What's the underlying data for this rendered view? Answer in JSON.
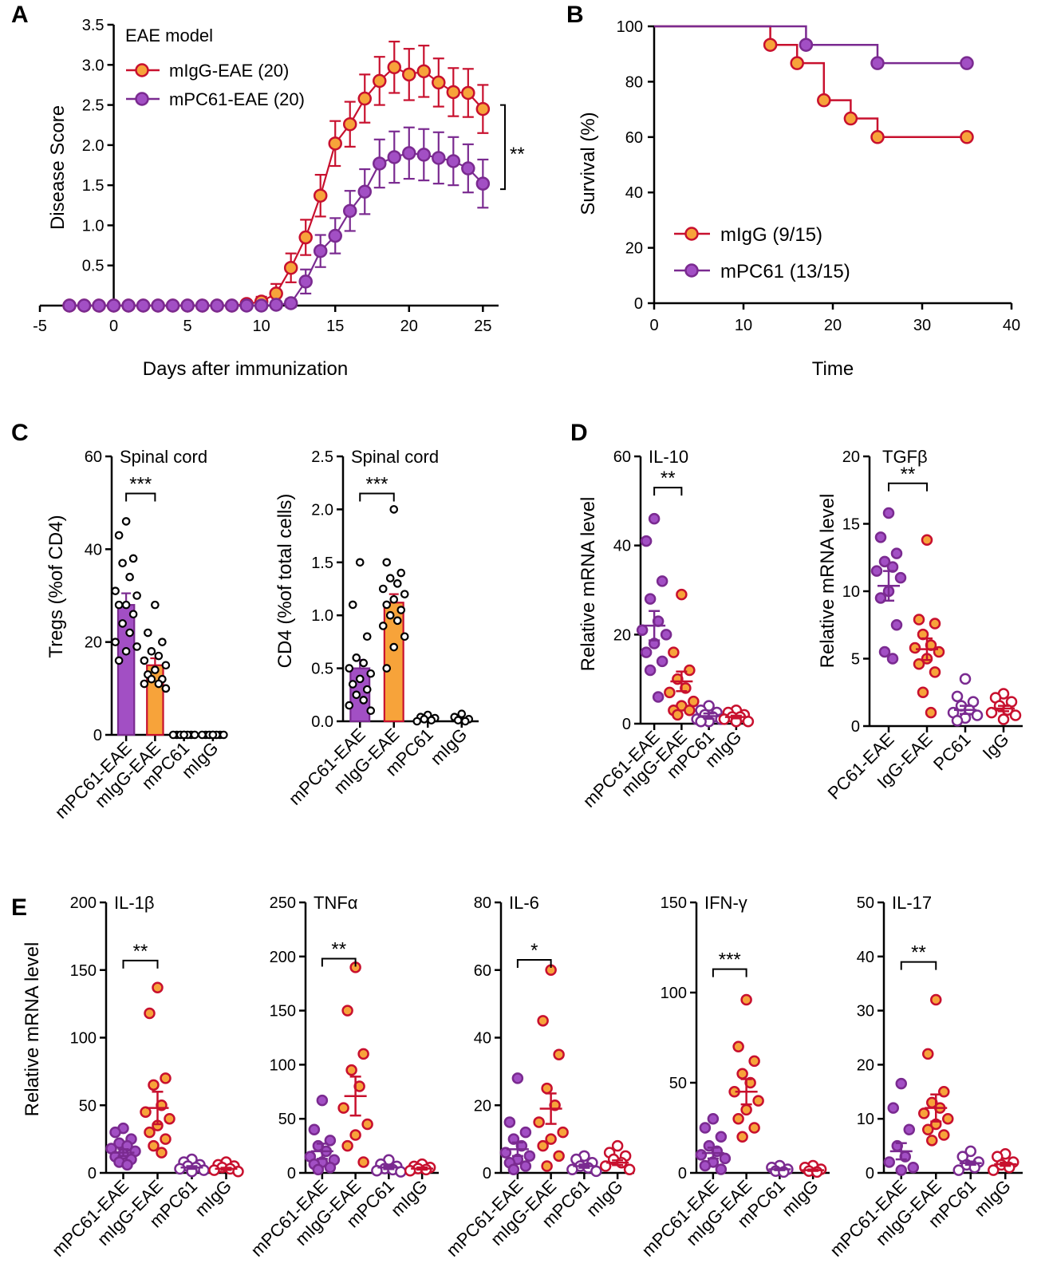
{
  "colors": {
    "red": "#c8102e",
    "orange": "#f7a33a",
    "purple": "#7a2a90",
    "purple_fill": "#a24fc4",
    "white": "#ffffff",
    "black": "#000000"
  },
  "chart_data": [
    {
      "id": "A",
      "type": "line",
      "panel_letter": "A",
      "xlabel": "Days after immunization",
      "ylabel": "Disease Score",
      "xlim": [
        -5,
        26
      ],
      "ylim": [
        0,
        3.5
      ],
      "xticks": [
        -5,
        0,
        5,
        10,
        15,
        20,
        25
      ],
      "yticks": [
        0.5,
        1.0,
        1.5,
        2.0,
        2.5,
        3.0,
        3.5
      ],
      "legend_title": "EAE model",
      "annotation": "**",
      "series": [
        {
          "name": "mIgG-EAE (20)",
          "line_color": "red",
          "marker_fill": "orange",
          "x": [
            -3,
            -2,
            -1,
            0,
            1,
            2,
            3,
            4,
            5,
            6,
            7,
            8,
            9,
            10,
            11,
            12,
            13,
            14,
            15,
            16,
            17,
            18,
            19,
            20,
            21,
            22,
            23,
            24,
            25
          ],
          "y": [
            0,
            0,
            0,
            0,
            0,
            0,
            0,
            0,
            0,
            0,
            0,
            0,
            0.02,
            0.05,
            0.15,
            0.47,
            0.85,
            1.37,
            2.02,
            2.26,
            2.58,
            2.8,
            2.97,
            2.88,
            2.92,
            2.78,
            2.66,
            2.65,
            2.45
          ],
          "err": [
            0,
            0,
            0,
            0,
            0,
            0,
            0,
            0,
            0,
            0,
            0,
            0,
            0.03,
            0.06,
            0.12,
            0.18,
            0.22,
            0.26,
            0.28,
            0.28,
            0.3,
            0.3,
            0.32,
            0.32,
            0.32,
            0.3,
            0.3,
            0.3,
            0.3
          ]
        },
        {
          "name": "mPC61-EAE (20)",
          "line_color": "purple",
          "marker_fill": "purple_fill",
          "x": [
            -3,
            -2,
            -1,
            0,
            1,
            2,
            3,
            4,
            5,
            6,
            7,
            8,
            9,
            10,
            11,
            12,
            13,
            14,
            15,
            16,
            17,
            18,
            19,
            20,
            21,
            22,
            23,
            24,
            25
          ],
          "y": [
            0,
            0,
            0,
            0,
            0,
            0,
            0,
            0,
            0,
            0,
            0,
            0,
            0,
            0,
            0.01,
            0.03,
            0.3,
            0.68,
            0.87,
            1.18,
            1.42,
            1.77,
            1.85,
            1.9,
            1.88,
            1.84,
            1.8,
            1.71,
            1.52
          ],
          "err": [
            0,
            0,
            0,
            0,
            0,
            0,
            0,
            0,
            0,
            0,
            0,
            0,
            0,
            0,
            0.02,
            0.05,
            0.15,
            0.2,
            0.22,
            0.25,
            0.28,
            0.3,
            0.32,
            0.32,
            0.32,
            0.32,
            0.3,
            0.3,
            0.3
          ]
        }
      ]
    },
    {
      "id": "B",
      "type": "line",
      "panel_letter": "B",
      "xlabel": "Time",
      "ylabel": "Survival (%)",
      "xlim": [
        0,
        40
      ],
      "ylim": [
        0,
        100
      ],
      "xticks": [
        0,
        10,
        20,
        30,
        40
      ],
      "yticks": [
        0,
        20,
        40,
        60,
        80,
        100
      ],
      "series": [
        {
          "name": "mIgG (9/15)",
          "line_color": "red",
          "marker_fill": "orange",
          "x": [
            0,
            13,
            16,
            19,
            22,
            25,
            35
          ],
          "y": [
            100,
            93.3,
            86.7,
            73.3,
            66.7,
            60,
            60
          ],
          "markers": [
            [
              13,
              93.3
            ],
            [
              16,
              86.7
            ],
            [
              19,
              73.3
            ],
            [
              22,
              66.7
            ],
            [
              25,
              60
            ],
            [
              35,
              60
            ]
          ]
        },
        {
          "name": "mPC61 (13/15)",
          "line_color": "purple",
          "marker_fill": "purple_fill",
          "x": [
            0,
            17,
            25,
            35
          ],
          "y": [
            100,
            93.3,
            86.7,
            86.7
          ],
          "markers": [
            [
              17,
              93.3
            ],
            [
              25,
              86.7
            ],
            [
              35,
              86.7
            ]
          ]
        }
      ]
    },
    {
      "id": "C1",
      "type": "bar",
      "panel_letter": "C",
      "title": "Spinal cord",
      "ylabel": "Tregs (%of CD4)",
      "ylim": [
        0,
        60
      ],
      "yticks": [
        0,
        20,
        40,
        60
      ],
      "categories": [
        "mPC61-EAE",
        "mIgG-EAE",
        "mPC61",
        "mIgG"
      ],
      "values": [
        28,
        15,
        0,
        0
      ],
      "err": [
        2.5,
        1.5,
        0.2,
        0.2
      ],
      "bar_fill": [
        "purple_fill",
        "orange",
        "white",
        "white"
      ],
      "bar_stroke": [
        "purple",
        "red",
        "black",
        "black"
      ],
      "points": [
        [
          46,
          43,
          38,
          37,
          34,
          31,
          30,
          28,
          28,
          26,
          24,
          22,
          20,
          19,
          18,
          16
        ],
        [
          28,
          22,
          20,
          18,
          17,
          16,
          15,
          14,
          13,
          12,
          12,
          11,
          11,
          10
        ],
        [
          0,
          0,
          0,
          0,
          0,
          0,
          0,
          0
        ],
        [
          0,
          0,
          0,
          0,
          0,
          0,
          0,
          0
        ]
      ],
      "point_fill": "white",
      "point_stroke": "black",
      "significance": {
        "from": 0,
        "to": 1,
        "label": "***",
        "y": 52
      }
    },
    {
      "id": "C2",
      "type": "bar",
      "title": "Spinal cord",
      "ylabel": "CD4 (%of total cells)",
      "ylim": [
        0,
        2.5
      ],
      "yticks": [
        0.0,
        0.5,
        1.0,
        1.5,
        2.0,
        2.5
      ],
      "categories": [
        "mPC61-EAE",
        "mIgG-EAE",
        "mPC61",
        "mIgG"
      ],
      "values": [
        0.5,
        1.12,
        0.03,
        0.02
      ],
      "err": [
        0.08,
        0.08,
        0.01,
        0.01
      ],
      "bar_fill": [
        "purple_fill",
        "orange",
        "white",
        "white"
      ],
      "bar_stroke": [
        "purple",
        "red",
        "black",
        "black"
      ],
      "points": [
        [
          1.5,
          1.1,
          0.8,
          0.6,
          0.55,
          0.5,
          0.45,
          0.4,
          0.35,
          0.3,
          0.25,
          0.2,
          0.15,
          0.1
        ],
        [
          2.0,
          1.5,
          1.4,
          1.35,
          1.3,
          1.25,
          1.2,
          1.15,
          1.1,
          1.05,
          1.0,
          0.95,
          0.9,
          0.8,
          0.7,
          0.5
        ],
        [
          0.06,
          0.04,
          0.03,
          0.02,
          0.01,
          0.0
        ],
        [
          0.07,
          0.04,
          0.02,
          0.01,
          0.0
        ]
      ],
      "point_fill": "white",
      "point_stroke": "black",
      "significance": {
        "from": 0,
        "to": 1,
        "label": "***",
        "y": 2.15
      }
    },
    {
      "id": "D1",
      "type": "scatter",
      "panel_letter": "D",
      "title": "IL-10",
      "ylabel": "Relative mRNA level",
      "ylim": [
        0,
        60
      ],
      "yticks": [
        0,
        20,
        40,
        60
      ],
      "categories": [
        "mPC61-EAE",
        "mIgG-EAE",
        "mPC61",
        "mIgG"
      ],
      "means": [
        22,
        9.5,
        1.7,
        1.5
      ],
      "err": [
        3.3,
        2.2,
        0.6,
        0.3
      ],
      "points": [
        [
          46,
          41,
          32,
          28,
          23,
          21,
          20,
          18,
          16,
          14,
          12,
          6
        ],
        [
          29,
          16,
          12,
          10,
          8,
          7,
          5,
          4,
          3,
          3,
          2
        ],
        [
          4,
          3,
          2.5,
          2,
          1.5,
          1,
          1,
          0.5,
          0.5
        ],
        [
          3,
          2.5,
          2,
          1.5,
          1.5,
          1,
          0.5,
          0.5
        ]
      ],
      "point_fill": [
        "purple_fill",
        "orange",
        "white",
        "white"
      ],
      "point_stroke": [
        "purple",
        "red",
        "purple",
        "red"
      ],
      "significance": {
        "from": 0,
        "to": 1,
        "label": "**",
        "y": 53
      }
    },
    {
      "id": "D2",
      "type": "scatter",
      "title": "TGFβ",
      "ylabel": "Relative mRNA level",
      "ylim": [
        0,
        20
      ],
      "yticks": [
        0,
        5,
        10,
        15,
        20
      ],
      "categories": [
        "PC61-EAE",
        "IgG-EAE",
        "PC61",
        "IgG"
      ],
      "means": [
        10.4,
        5.7,
        1.2,
        1.3
      ],
      "err": [
        1.1,
        0.8,
        0.3,
        0.2
      ],
      "points": [
        [
          15.8,
          14,
          12.8,
          12.2,
          11.8,
          11.5,
          11,
          10,
          9.5,
          7.5,
          5.5,
          5.0
        ],
        [
          13.8,
          7.9,
          7.6,
          6.8,
          6.0,
          5.8,
          5.5,
          5.0,
          4.6,
          4.0,
          2.5,
          1.0
        ],
        [
          3.5,
          2.2,
          1.8,
          1.5,
          1.2,
          1.0,
          0.8,
          0.6,
          0.4
        ],
        [
          2.4,
          2.1,
          1.8,
          1.5,
          1.2,
          1.0,
          0.8,
          0.5
        ]
      ],
      "point_fill": [
        "purple_fill",
        "orange",
        "white",
        "white"
      ],
      "point_stroke": [
        "purple",
        "red",
        "purple",
        "red"
      ],
      "significance": {
        "from": 0,
        "to": 1,
        "label": "**",
        "y": 18
      }
    },
    {
      "id": "E1",
      "type": "scatter",
      "panel_letter": "E",
      "title": "IL-1β",
      "ylabel": "Relative mRNA level",
      "ylim": [
        0,
        200
      ],
      "yticks": [
        0,
        50,
        100,
        150,
        200
      ],
      "categories": [
        "mPC61-EAE",
        "mIgG-EAE",
        "mPC61",
        "mIgG"
      ],
      "means": [
        15,
        48,
        4,
        3
      ],
      "err": [
        2.5,
        12,
        1,
        0.8
      ],
      "points": [
        [
          33,
          30,
          25,
          22,
          20,
          18,
          16,
          14,
          12,
          10,
          8,
          6
        ],
        [
          137,
          118,
          70,
          65,
          50,
          45,
          40,
          35,
          30,
          25,
          20,
          15
        ],
        [
          10,
          8,
          6,
          5,
          4,
          3,
          2,
          1
        ],
        [
          8,
          6,
          5,
          4,
          3,
          2,
          1
        ]
      ],
      "point_fill": [
        "purple_fill",
        "orange",
        "white",
        "white"
      ],
      "point_stroke": [
        "purple",
        "red",
        "purple",
        "red"
      ],
      "significance": {
        "from": 0,
        "to": 1,
        "label": "**",
        "y": 157
      }
    },
    {
      "id": "E2",
      "type": "scatter",
      "title": "TNFα",
      "ylim": [
        0,
        250
      ],
      "yticks": [
        0,
        50,
        100,
        150,
        200,
        250
      ],
      "categories": [
        "mPC61-EAE",
        "mIgG-EAE",
        "mPC61",
        "mIgG"
      ],
      "means": [
        20,
        71,
        5,
        4
      ],
      "err": [
        7,
        18,
        1.5,
        1
      ],
      "points": [
        [
          67,
          40,
          30,
          25,
          20,
          15,
          12,
          10,
          8,
          5,
          3
        ],
        [
          190,
          150,
          110,
          95,
          80,
          60,
          45,
          35,
          25,
          10
        ],
        [
          12,
          8,
          6,
          4,
          3,
          2,
          1
        ],
        [
          8,
          6,
          5,
          4,
          3,
          2
        ]
      ],
      "point_fill": [
        "purple_fill",
        "orange",
        "white",
        "white"
      ],
      "point_stroke": [
        "purple",
        "red",
        "purple",
        "red"
      ],
      "significance": {
        "from": 0,
        "to": 1,
        "label": "**",
        "y": 198
      }
    },
    {
      "id": "E3",
      "type": "scatter",
      "title": "IL-6",
      "ylim": [
        0,
        80
      ],
      "yticks": [
        0,
        20,
        40,
        60,
        80
      ],
      "categories": [
        "mPC61-EAE",
        "mIgG-EAE",
        "mPC61",
        "mIgG"
      ],
      "means": [
        7,
        19,
        2,
        3
      ],
      "err": [
        2,
        4.5,
        0.5,
        0.7
      ],
      "points": [
        [
          28,
          15,
          12,
          10,
          8,
          6,
          5,
          4,
          3,
          2,
          1
        ],
        [
          60,
          45,
          35,
          25,
          20,
          15,
          12,
          10,
          8,
          5,
          2
        ],
        [
          5,
          4,
          3,
          2,
          1.5,
          1,
          0.5
        ],
        [
          8,
          6,
          5,
          4,
          3,
          2,
          1
        ]
      ],
      "point_fill": [
        "purple_fill",
        "orange",
        "white",
        "white"
      ],
      "point_stroke": [
        "purple",
        "red",
        "purple",
        "red"
      ],
      "significance": {
        "from": 0,
        "to": 1,
        "label": "*",
        "y": 63
      }
    },
    {
      "id": "E4",
      "type": "scatter",
      "title": "IFN-γ",
      "ylim": [
        0,
        150
      ],
      "yticks": [
        0,
        50,
        100,
        150
      ],
      "categories": [
        "mPC61-EAE",
        "mIgG-EAE",
        "mPC61",
        "mIgG"
      ],
      "means": [
        11,
        45,
        2,
        1.5
      ],
      "err": [
        3,
        7,
        0.5,
        0.4
      ],
      "points": [
        [
          30,
          25,
          20,
          15,
          12,
          10,
          8,
          6,
          4,
          2
        ],
        [
          96,
          70,
          62,
          55,
          50,
          45,
          40,
          35,
          30,
          25,
          20
        ],
        [
          4,
          3,
          2,
          1,
          0.5
        ],
        [
          4,
          3,
          2,
          1,
          0.5
        ]
      ],
      "point_fill": [
        "purple_fill",
        "orange",
        "white",
        "white"
      ],
      "point_stroke": [
        "purple",
        "red",
        "purple",
        "red"
      ],
      "significance": {
        "from": 0,
        "to": 1,
        "label": "***",
        "y": 113
      }
    },
    {
      "id": "E5",
      "type": "scatter",
      "title": "IL-17",
      "ylim": [
        0,
        50
      ],
      "yticks": [
        0,
        10,
        20,
        30,
        40,
        50
      ],
      "categories": [
        "mPC61-EAE",
        "mIgG-EAE",
        "mPC61",
        "mIgG"
      ],
      "means": [
        4,
        12,
        1.8,
        1.6
      ],
      "err": [
        1.5,
        2.5,
        0.3,
        0.3
      ],
      "points": [
        [
          16.5,
          12,
          8,
          5,
          3,
          2,
          1,
          0.5
        ],
        [
          32,
          22,
          15,
          13,
          12,
          11,
          10,
          9,
          8,
          7,
          6
        ],
        [
          4,
          3,
          2,
          1.5,
          1,
          0.5
        ],
        [
          3.5,
          3,
          2,
          1.5,
          1,
          0.5
        ]
      ],
      "point_fill": [
        "purple_fill",
        "orange",
        "white",
        "white"
      ],
      "point_stroke": [
        "purple",
        "red",
        "purple",
        "red"
      ],
      "significance": {
        "from": 0,
        "to": 1,
        "label": "**",
        "y": 39
      }
    }
  ]
}
